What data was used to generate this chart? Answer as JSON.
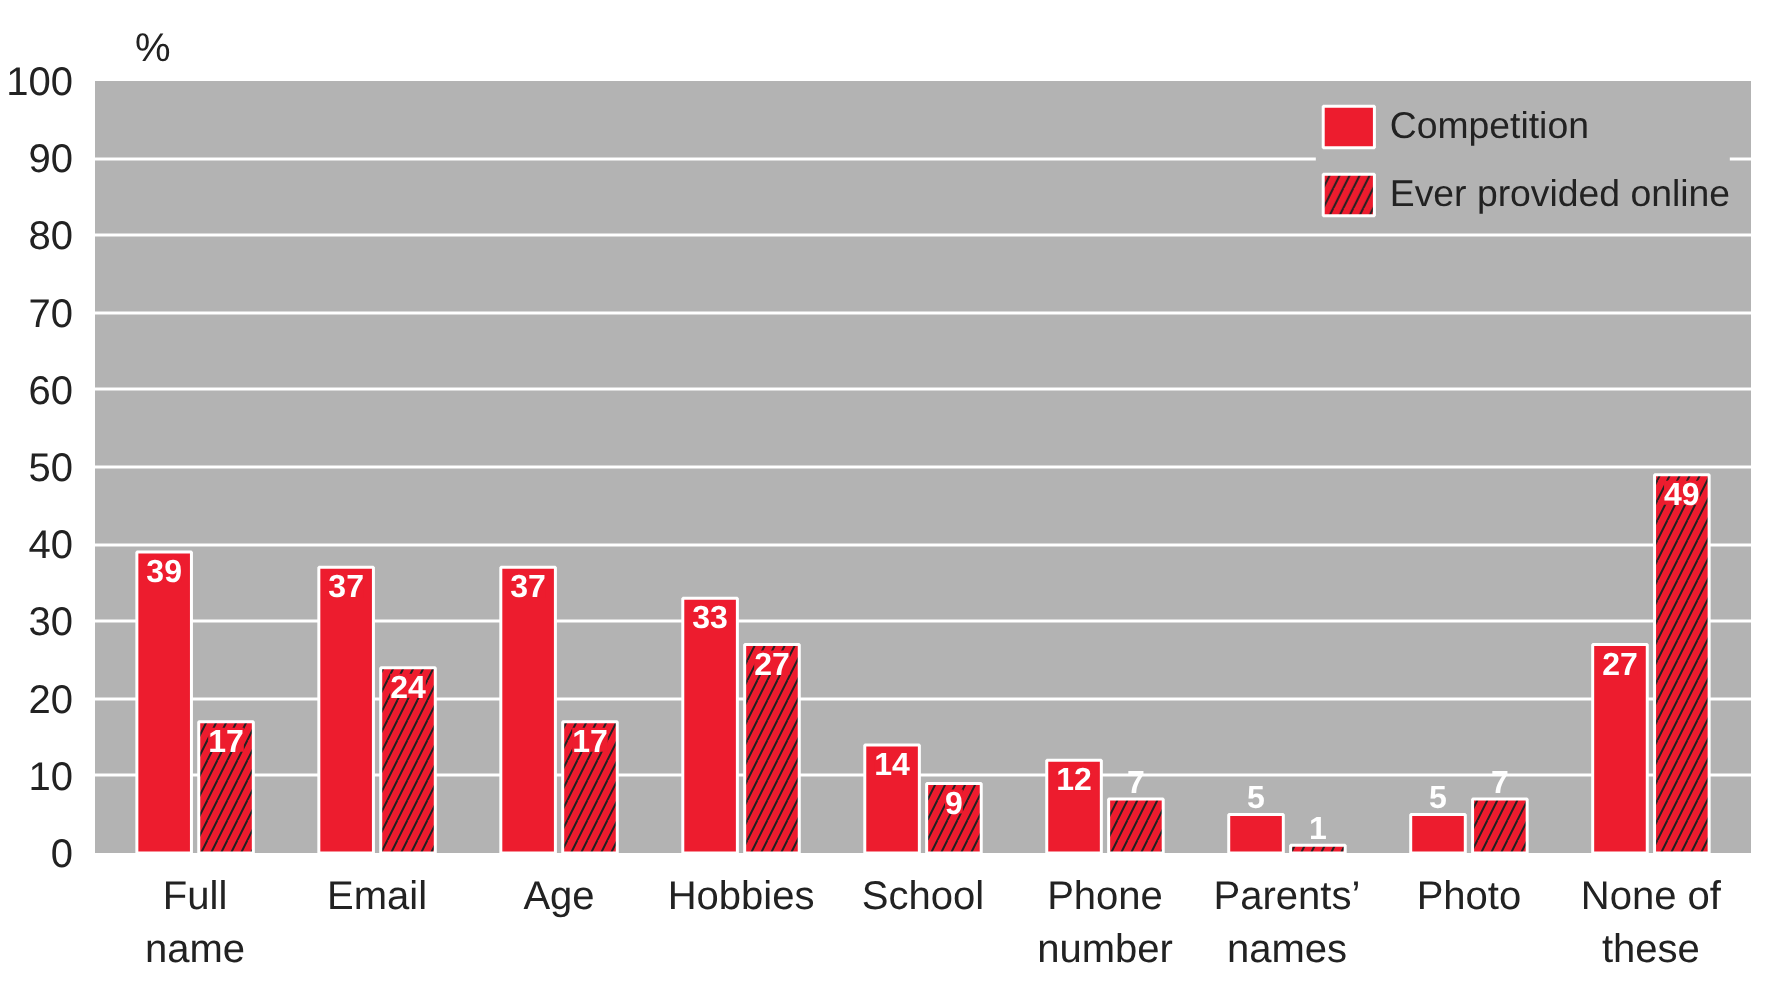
{
  "chart_data": {
    "type": "bar",
    "ylabel": "%",
    "categories": [
      "Full name",
      "Email",
      "Age",
      "Hobbies",
      "School",
      "Phone number",
      "Parents’ names",
      "Photo",
      "None of these"
    ],
    "series": [
      {
        "name": "Competition",
        "color": "#ed1c2e",
        "values": [
          39,
          37,
          37,
          33,
          14,
          12,
          5,
          5,
          27
        ]
      },
      {
        "name": "Ever provided online",
        "color": "#ed1c2e",
        "values": [
          17,
          24,
          17,
          27,
          9,
          7,
          1,
          7,
          49
        ]
      }
    ],
    "ylim": [
      0,
      100
    ],
    "yticks": [
      0,
      10,
      20,
      30,
      40,
      50,
      60,
      70,
      80,
      90,
      100
    ],
    "grid": "y",
    "legend": "top right",
    "data_labels": true
  }
}
